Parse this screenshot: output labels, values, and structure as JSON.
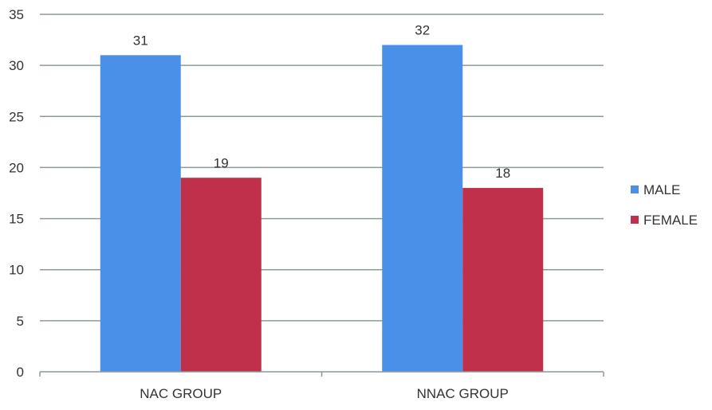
{
  "chart_data": {
    "type": "bar",
    "categories": [
      "NAC GROUP",
      "NNAC GROUP"
    ],
    "series": [
      {
        "name": "MALE",
        "values": [
          31,
          32
        ],
        "color": "#4a90e8"
      },
      {
        "name": "FEMALE",
        "values": [
          19,
          18
        ],
        "color": "#c0304a"
      }
    ],
    "ylim": [
      0,
      35
    ],
    "yticks": [
      0,
      5,
      10,
      15,
      20,
      25,
      30,
      35
    ],
    "grid": true,
    "legend_position": "right"
  }
}
